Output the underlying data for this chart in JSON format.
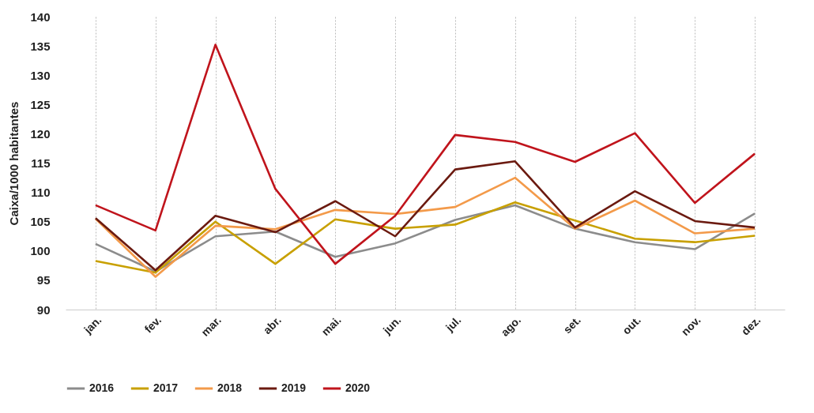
{
  "chart_data": {
    "type": "line",
    "ylabel": "Caixa/1000 habitantes",
    "categories": [
      "jan.",
      "fev.",
      "mar.",
      "abr.",
      "mai.",
      "jun.",
      "jul.",
      "ago.",
      "set.",
      "out.",
      "nov.",
      "dez."
    ],
    "series": [
      {
        "name": "2016",
        "color": "#8c8c8c",
        "values": [
          101.2,
          96.5,
          102.5,
          103.3,
          99,
          101.3,
          105.3,
          107.8,
          103.8,
          101.5,
          100.3,
          106.4
        ]
      },
      {
        "name": "2017",
        "color": "#c8a000",
        "values": [
          98.3,
          96.3,
          105,
          97.8,
          105.4,
          103.8,
          104.5,
          108.3,
          105.2,
          102.1,
          101.5,
          102.6
        ]
      },
      {
        "name": "2018",
        "color": "#f39a4a",
        "values": [
          105.5,
          95.6,
          104.3,
          103.7,
          107,
          106.3,
          107.5,
          112.5,
          103.8,
          108.6,
          103,
          103.8
        ]
      },
      {
        "name": "2019",
        "color": "#6b1a10",
        "values": [
          105.6,
          96.7,
          106,
          103.2,
          108.5,
          102.5,
          113.9,
          115.3,
          104,
          110.2,
          105.1,
          104
        ]
      },
      {
        "name": "2020",
        "color": "#c0141c",
        "values": [
          107.8,
          103.5,
          135.2,
          110.6,
          97.8,
          106,
          119.8,
          118.6,
          115.2,
          120.1,
          108.2,
          116.6
        ]
      }
    ],
    "ylim": [
      90,
      140
    ],
    "yticks": [
      90,
      95,
      100,
      105,
      110,
      115,
      120,
      125,
      130,
      135,
      140
    ],
    "grid": "x",
    "legend": "bottom",
    "marker": "none",
    "line_style": "solid"
  }
}
